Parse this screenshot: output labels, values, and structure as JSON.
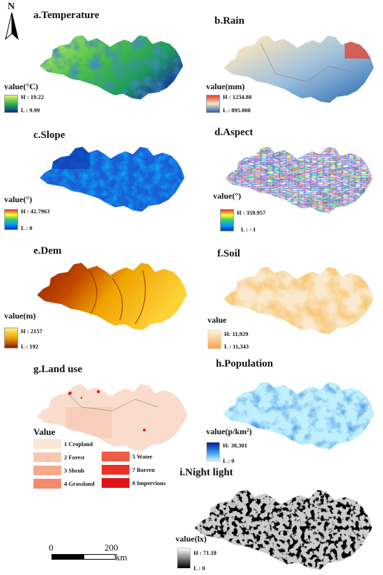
{
  "north": {
    "label": "N"
  },
  "panels": {
    "temp": {
      "title": "a.Temperature",
      "unit": "value(°C)",
      "high": "H : 19.22",
      "low": "L : 9.99",
      "colors": [
        "#e8f06a",
        "#27b64a",
        "#0b2d8c"
      ]
    },
    "rain": {
      "title": "b.Rain",
      "unit": "value(mm)",
      "high": "H : 1234.88",
      "low": "L : 895.008",
      "colors": [
        "#e53d2a",
        "#f3e6c4",
        "#2a63ad"
      ]
    },
    "slope": {
      "title": "c.Slope",
      "unit": "value(°)",
      "high": "H : 42.7963",
      "low": "L : 0",
      "colors": [
        "#e53422",
        "#ffff33",
        "#33cc66",
        "#0099ff",
        "#0033cc"
      ]
    },
    "aspect": {
      "title": "d.Aspect",
      "unit": "value(°)",
      "high": "H : 359.957",
      "low": "L : −1",
      "colors": [
        "#e53422",
        "#ffff33",
        "#33cc66",
        "#0099ff",
        "#0033cc"
      ]
    },
    "dem": {
      "title": "e.Dem",
      "unit": "value(m)",
      "high": "H : 2157",
      "low": "L : 192",
      "colors": [
        "#fff27a",
        "#f0a000",
        "#8a1a00"
      ]
    },
    "soil": {
      "title": "f.Soil",
      "unit": "value",
      "high": "H: 11,929",
      "low": "L : 11,343",
      "colors": [
        "#fff2d9",
        "#f5a54a"
      ]
    },
    "land": {
      "title": "g.Land use",
      "unit": "Value"
    },
    "pop": {
      "title": "h.Population",
      "unit": "value(p/km²)",
      "high": "H: 38,301",
      "low": "L : 0",
      "colors": [
        "#0b1a8a",
        "#2e8ff0",
        "#c9f3ff"
      ]
    },
    "night": {
      "title": "i.Night light",
      "unit": "value(lx)",
      "high": "H : 71.18",
      "low": "L : 0",
      "colors": [
        "#ffffff",
        "#000000"
      ]
    }
  },
  "land_use_classes": [
    {
      "label": "1 Cropland",
      "color": "#fbe6d6"
    },
    {
      "label": "2 Forest",
      "color": "#f7c8ad"
    },
    {
      "label": "3 Shrub",
      "color": "#f5a98a"
    },
    {
      "label": "4 Grassland",
      "color": "#f48a6a"
    },
    {
      "label": "5 Water",
      "color": "#ee5b47"
    },
    {
      "label": "7 Barren",
      "color": "#e83227"
    },
    {
      "label": "8 Impervious",
      "color": "#e0141a"
    }
  ],
  "scalebar": {
    "start": "0",
    "end": "200",
    "unit": "km"
  }
}
